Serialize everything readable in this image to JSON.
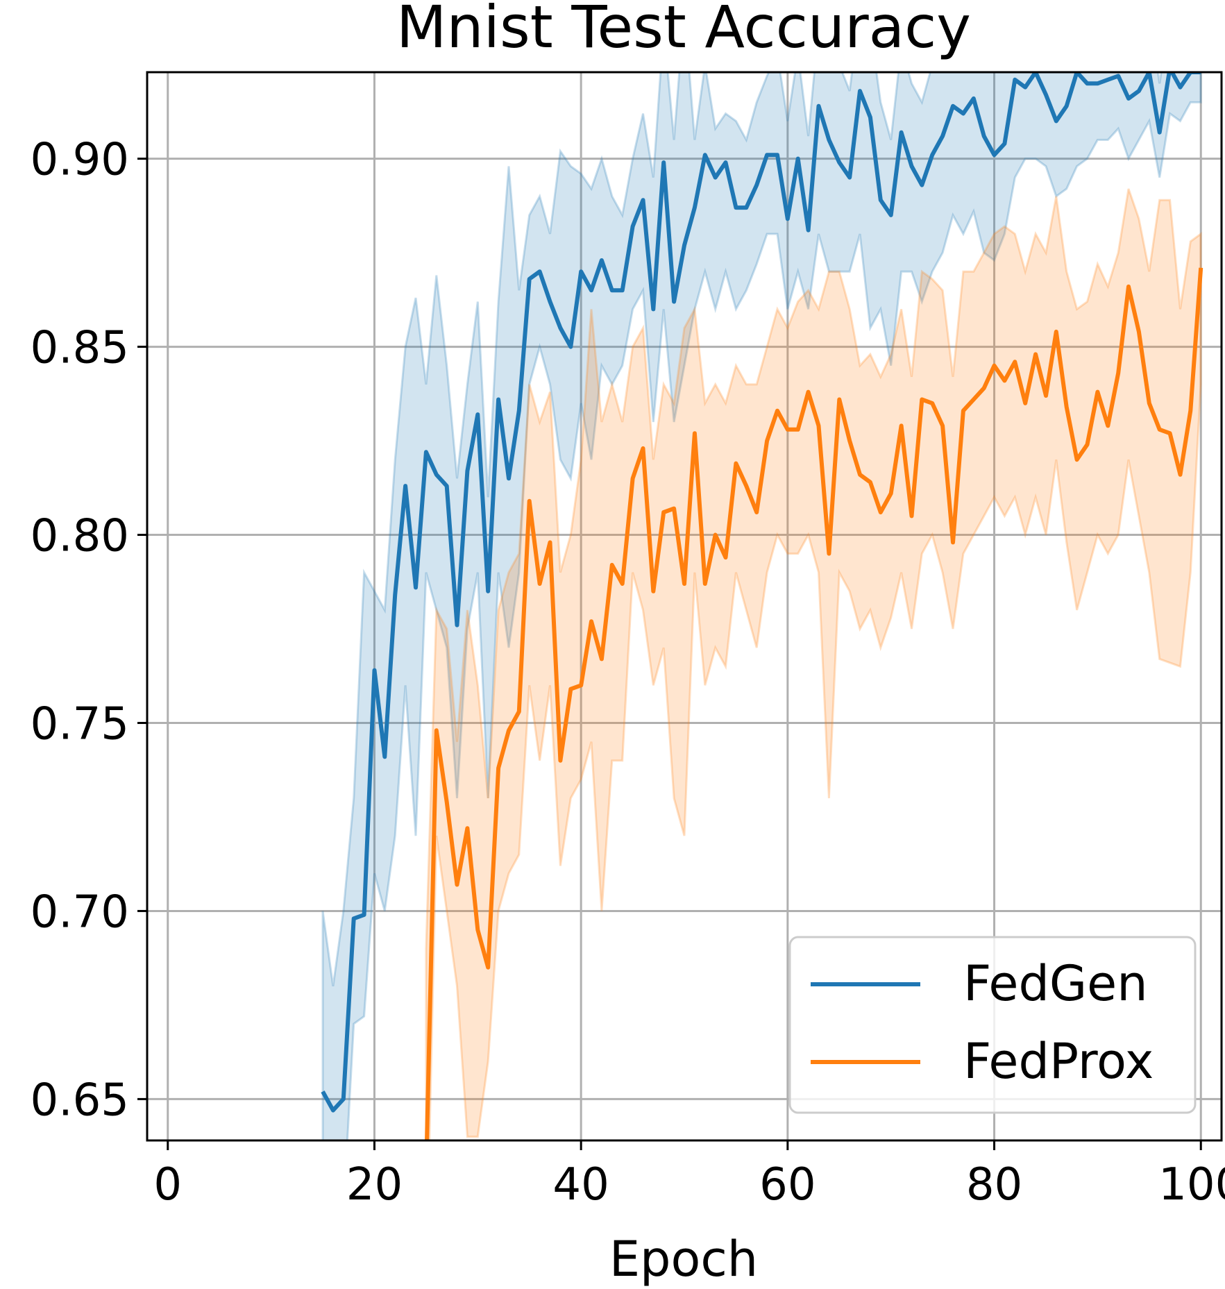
{
  "chart_data": {
    "type": "line",
    "title": "Mnist Test Accuracy",
    "xlabel": "Epoch",
    "ylabel": "",
    "xlim": [
      -2,
      102
    ],
    "ylim": [
      0.639,
      0.923
    ],
    "xticks": [
      0,
      20,
      40,
      60,
      80,
      100
    ],
    "xtick_labels": [
      "0",
      "20",
      "40",
      "60",
      "80",
      "100"
    ],
    "yticks": [
      0.65,
      0.7,
      0.75,
      0.8,
      0.85,
      0.9
    ],
    "ytick_labels": [
      "0.65",
      "0.70",
      "0.75",
      "0.80",
      "0.85",
      "0.90"
    ],
    "grid": true,
    "legend_position": "lower-right",
    "series": [
      {
        "name": "FedGen",
        "color": "#1f77b4",
        "x": [
          15,
          16,
          17,
          18,
          19,
          20,
          21,
          22,
          23,
          24,
          25,
          26,
          27,
          28,
          29,
          30,
          31,
          32,
          33,
          34,
          35,
          36,
          37,
          38,
          39,
          40,
          41,
          42,
          43,
          44,
          45,
          46,
          47,
          48,
          49,
          50,
          51,
          52,
          53,
          54,
          55,
          56,
          57,
          58,
          59,
          60,
          61,
          62,
          63,
          64,
          65,
          66,
          67,
          68,
          69,
          70,
          71,
          72,
          73,
          74,
          75,
          76,
          77,
          78,
          79,
          80,
          81,
          82,
          83,
          84,
          85,
          86,
          87,
          88,
          89,
          90,
          91,
          92,
          93,
          94,
          95,
          96,
          97,
          98,
          99,
          100
        ],
        "values": [
          0.652,
          0.647,
          0.65,
          0.698,
          0.699,
          0.764,
          0.741,
          0.784,
          0.813,
          0.786,
          0.822,
          0.816,
          0.813,
          0.776,
          0.817,
          0.832,
          0.785,
          0.836,
          0.815,
          0.833,
          0.868,
          0.87,
          0.862,
          0.855,
          0.85,
          0.87,
          0.865,
          0.873,
          0.865,
          0.865,
          0.882,
          0.889,
          0.86,
          0.899,
          0.862,
          0.877,
          0.887,
          0.901,
          0.895,
          0.899,
          0.887,
          0.887,
          0.893,
          0.901,
          0.901,
          0.884,
          0.9,
          0.881,
          0.914,
          0.905,
          0.899,
          0.895,
          0.918,
          0.911,
          0.889,
          0.885,
          0.907,
          0.898,
          0.893,
          0.901,
          0.906,
          0.914,
          0.912,
          0.916,
          0.906,
          0.901,
          0.904,
          0.921,
          0.919,
          0.923,
          0.917,
          0.91,
          0.914,
          0.923,
          0.92,
          0.92,
          0.921,
          0.922,
          0.916,
          0.918,
          0.923,
          0.907,
          0.924,
          0.919,
          0.923,
          0.923
        ],
        "lower": [
          0.6,
          0.63,
          0.62,
          0.67,
          0.672,
          0.71,
          0.7,
          0.72,
          0.76,
          0.72,
          0.79,
          0.78,
          0.77,
          0.73,
          0.775,
          0.79,
          0.73,
          0.79,
          0.77,
          0.79,
          0.84,
          0.85,
          0.84,
          0.82,
          0.815,
          0.835,
          0.82,
          0.845,
          0.84,
          0.845,
          0.86,
          0.865,
          0.83,
          0.86,
          0.83,
          0.845,
          0.86,
          0.87,
          0.86,
          0.87,
          0.86,
          0.865,
          0.872,
          0.88,
          0.88,
          0.86,
          0.87,
          0.86,
          0.88,
          0.87,
          0.87,
          0.87,
          0.88,
          0.855,
          0.86,
          0.845,
          0.87,
          0.87,
          0.862,
          0.87,
          0.875,
          0.885,
          0.88,
          0.886,
          0.875,
          0.873,
          0.88,
          0.895,
          0.9,
          0.9,
          0.898,
          0.89,
          0.892,
          0.898,
          0.9,
          0.905,
          0.905,
          0.908,
          0.9,
          0.905,
          0.91,
          0.895,
          0.912,
          0.91,
          0.915,
          0.915
        ],
        "upper": [
          0.7,
          0.68,
          0.7,
          0.73,
          0.79,
          0.785,
          0.78,
          0.82,
          0.85,
          0.863,
          0.84,
          0.869,
          0.845,
          0.815,
          0.84,
          0.862,
          0.81,
          0.862,
          0.898,
          0.865,
          0.885,
          0.89,
          0.88,
          0.902,
          0.898,
          0.896,
          0.892,
          0.9,
          0.89,
          0.885,
          0.9,
          0.912,
          0.895,
          0.935,
          0.905,
          0.94,
          0.905,
          0.925,
          0.908,
          0.912,
          0.91,
          0.905,
          0.915,
          0.922,
          0.928,
          0.91,
          0.928,
          0.906,
          0.935,
          0.93,
          0.925,
          0.918,
          0.94,
          0.935,
          0.915,
          0.905,
          0.93,
          0.92,
          0.915,
          0.925,
          0.93,
          0.935,
          0.94,
          0.942,
          0.93,
          0.925,
          0.926,
          0.94,
          0.936,
          0.945,
          0.934,
          0.928,
          0.932,
          0.944,
          0.938,
          0.936,
          0.938,
          0.94,
          0.93,
          0.932,
          0.94,
          0.92,
          0.938,
          0.93,
          0.935,
          0.935
        ]
      },
      {
        "name": "FedProx",
        "color": "#ff7f0e",
        "x": [
          25,
          26,
          27,
          28,
          29,
          30,
          31,
          32,
          33,
          34,
          35,
          36,
          37,
          38,
          39,
          40,
          41,
          42,
          43,
          44,
          45,
          46,
          47,
          48,
          49,
          50,
          51,
          52,
          53,
          54,
          55,
          56,
          57,
          58,
          59,
          60,
          61,
          62,
          63,
          64,
          65,
          66,
          67,
          68,
          69,
          70,
          71,
          72,
          73,
          74,
          75,
          76,
          77,
          78,
          79,
          80,
          81,
          82,
          83,
          84,
          85,
          86,
          87,
          88,
          89,
          90,
          91,
          92,
          93,
          94,
          95,
          96,
          97,
          98,
          99,
          100
        ],
        "values": [
          0.63,
          0.748,
          0.729,
          0.707,
          0.722,
          0.695,
          0.685,
          0.738,
          0.748,
          0.753,
          0.809,
          0.787,
          0.798,
          0.74,
          0.759,
          0.76,
          0.777,
          0.767,
          0.792,
          0.787,
          0.815,
          0.823,
          0.785,
          0.806,
          0.807,
          0.787,
          0.827,
          0.787,
          0.8,
          0.794,
          0.819,
          0.813,
          0.806,
          0.825,
          0.833,
          0.828,
          0.828,
          0.838,
          0.829,
          0.795,
          0.836,
          0.825,
          0.816,
          0.814,
          0.806,
          0.811,
          0.829,
          0.805,
          0.836,
          0.835,
          0.829,
          0.798,
          0.833,
          0.836,
          0.839,
          0.845,
          0.841,
          0.846,
          0.835,
          0.848,
          0.837,
          0.854,
          0.834,
          0.82,
          0.824,
          0.838,
          0.829,
          0.843,
          0.866,
          0.854,
          0.835,
          0.828,
          0.827,
          0.816,
          0.833,
          0.871
        ],
        "lower": [
          0.6,
          0.72,
          0.7,
          0.68,
          0.64,
          0.64,
          0.66,
          0.7,
          0.71,
          0.715,
          0.76,
          0.74,
          0.76,
          0.712,
          0.73,
          0.735,
          0.745,
          0.7,
          0.74,
          0.74,
          0.79,
          0.78,
          0.76,
          0.77,
          0.73,
          0.72,
          0.79,
          0.76,
          0.77,
          0.765,
          0.79,
          0.78,
          0.77,
          0.79,
          0.8,
          0.795,
          0.795,
          0.8,
          0.79,
          0.73,
          0.79,
          0.785,
          0.775,
          0.78,
          0.77,
          0.778,
          0.79,
          0.775,
          0.795,
          0.8,
          0.79,
          0.775,
          0.795,
          0.8,
          0.805,
          0.81,
          0.805,
          0.81,
          0.8,
          0.81,
          0.8,
          0.82,
          0.798,
          0.78,
          0.79,
          0.8,
          0.795,
          0.8,
          0.82,
          0.805,
          0.79,
          0.767,
          0.766,
          0.765,
          0.79,
          0.84
        ],
        "upper": [
          0.69,
          0.78,
          0.775,
          0.745,
          0.78,
          0.76,
          0.73,
          0.78,
          0.79,
          0.795,
          0.84,
          0.83,
          0.838,
          0.79,
          0.8,
          0.82,
          0.86,
          0.83,
          0.84,
          0.83,
          0.85,
          0.855,
          0.82,
          0.84,
          0.835,
          0.855,
          0.86,
          0.835,
          0.84,
          0.835,
          0.845,
          0.84,
          0.84,
          0.85,
          0.86,
          0.855,
          0.862,
          0.865,
          0.86,
          0.87,
          0.87,
          0.86,
          0.845,
          0.848,
          0.842,
          0.848,
          0.86,
          0.842,
          0.87,
          0.868,
          0.865,
          0.842,
          0.87,
          0.87,
          0.875,
          0.88,
          0.882,
          0.88,
          0.87,
          0.88,
          0.875,
          0.89,
          0.87,
          0.86,
          0.862,
          0.872,
          0.866,
          0.875,
          0.892,
          0.884,
          0.87,
          0.889,
          0.889,
          0.86,
          0.878,
          0.88
        ]
      }
    ]
  }
}
